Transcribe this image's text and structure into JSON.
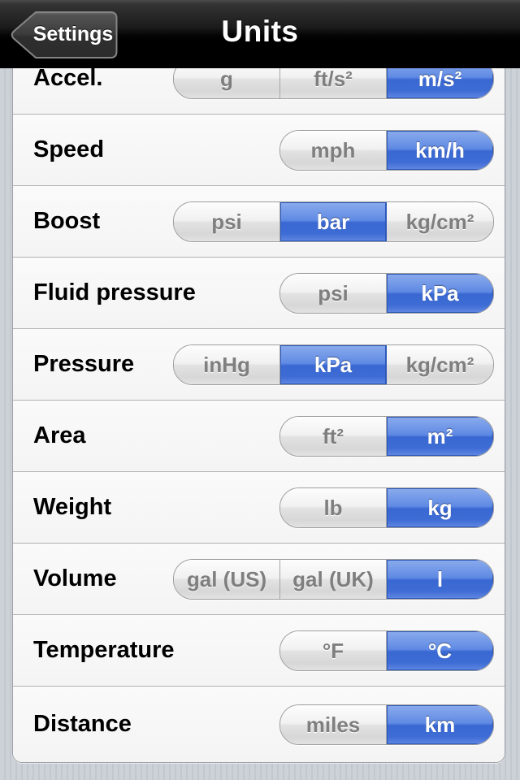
{
  "nav": {
    "back_label": "Settings",
    "title": "Units"
  },
  "rows": [
    {
      "label": "Accel.",
      "options": [
        "g",
        "ft/s²",
        "m/s²"
      ],
      "selected": 2
    },
    {
      "label": "Speed",
      "options": [
        "mph",
        "km/h"
      ],
      "selected": 1
    },
    {
      "label": "Boost",
      "options": [
        "psi",
        "bar",
        "kg/cm²"
      ],
      "selected": 1
    },
    {
      "label": "Fluid pressure",
      "options": [
        "psi",
        "kPa"
      ],
      "selected": 1
    },
    {
      "label": "Pressure",
      "options": [
        "inHg",
        "kPa",
        "kg/cm²"
      ],
      "selected": 1
    },
    {
      "label": "Area",
      "options": [
        "ft²",
        "m²"
      ],
      "selected": 1
    },
    {
      "label": "Weight",
      "options": [
        "lb",
        "kg"
      ],
      "selected": 1
    },
    {
      "label": "Volume",
      "options": [
        "gal (US)",
        "gal (UK)",
        "l"
      ],
      "selected": 2
    },
    {
      "label": "Temperature",
      "options": [
        "°F",
        "°C"
      ],
      "selected": 1
    },
    {
      "label": "Distance",
      "options": [
        "miles",
        "km"
      ],
      "selected": 1
    }
  ],
  "colors": {
    "selected_segment_blue": "#3e6cd5",
    "segment_text_gray": "#7f7f7f",
    "row_background": "#f6f6f6",
    "separator_gray": "#b2b2b2",
    "navbar_black": "#000000",
    "pinstripe_background": "#c8ccd3"
  }
}
